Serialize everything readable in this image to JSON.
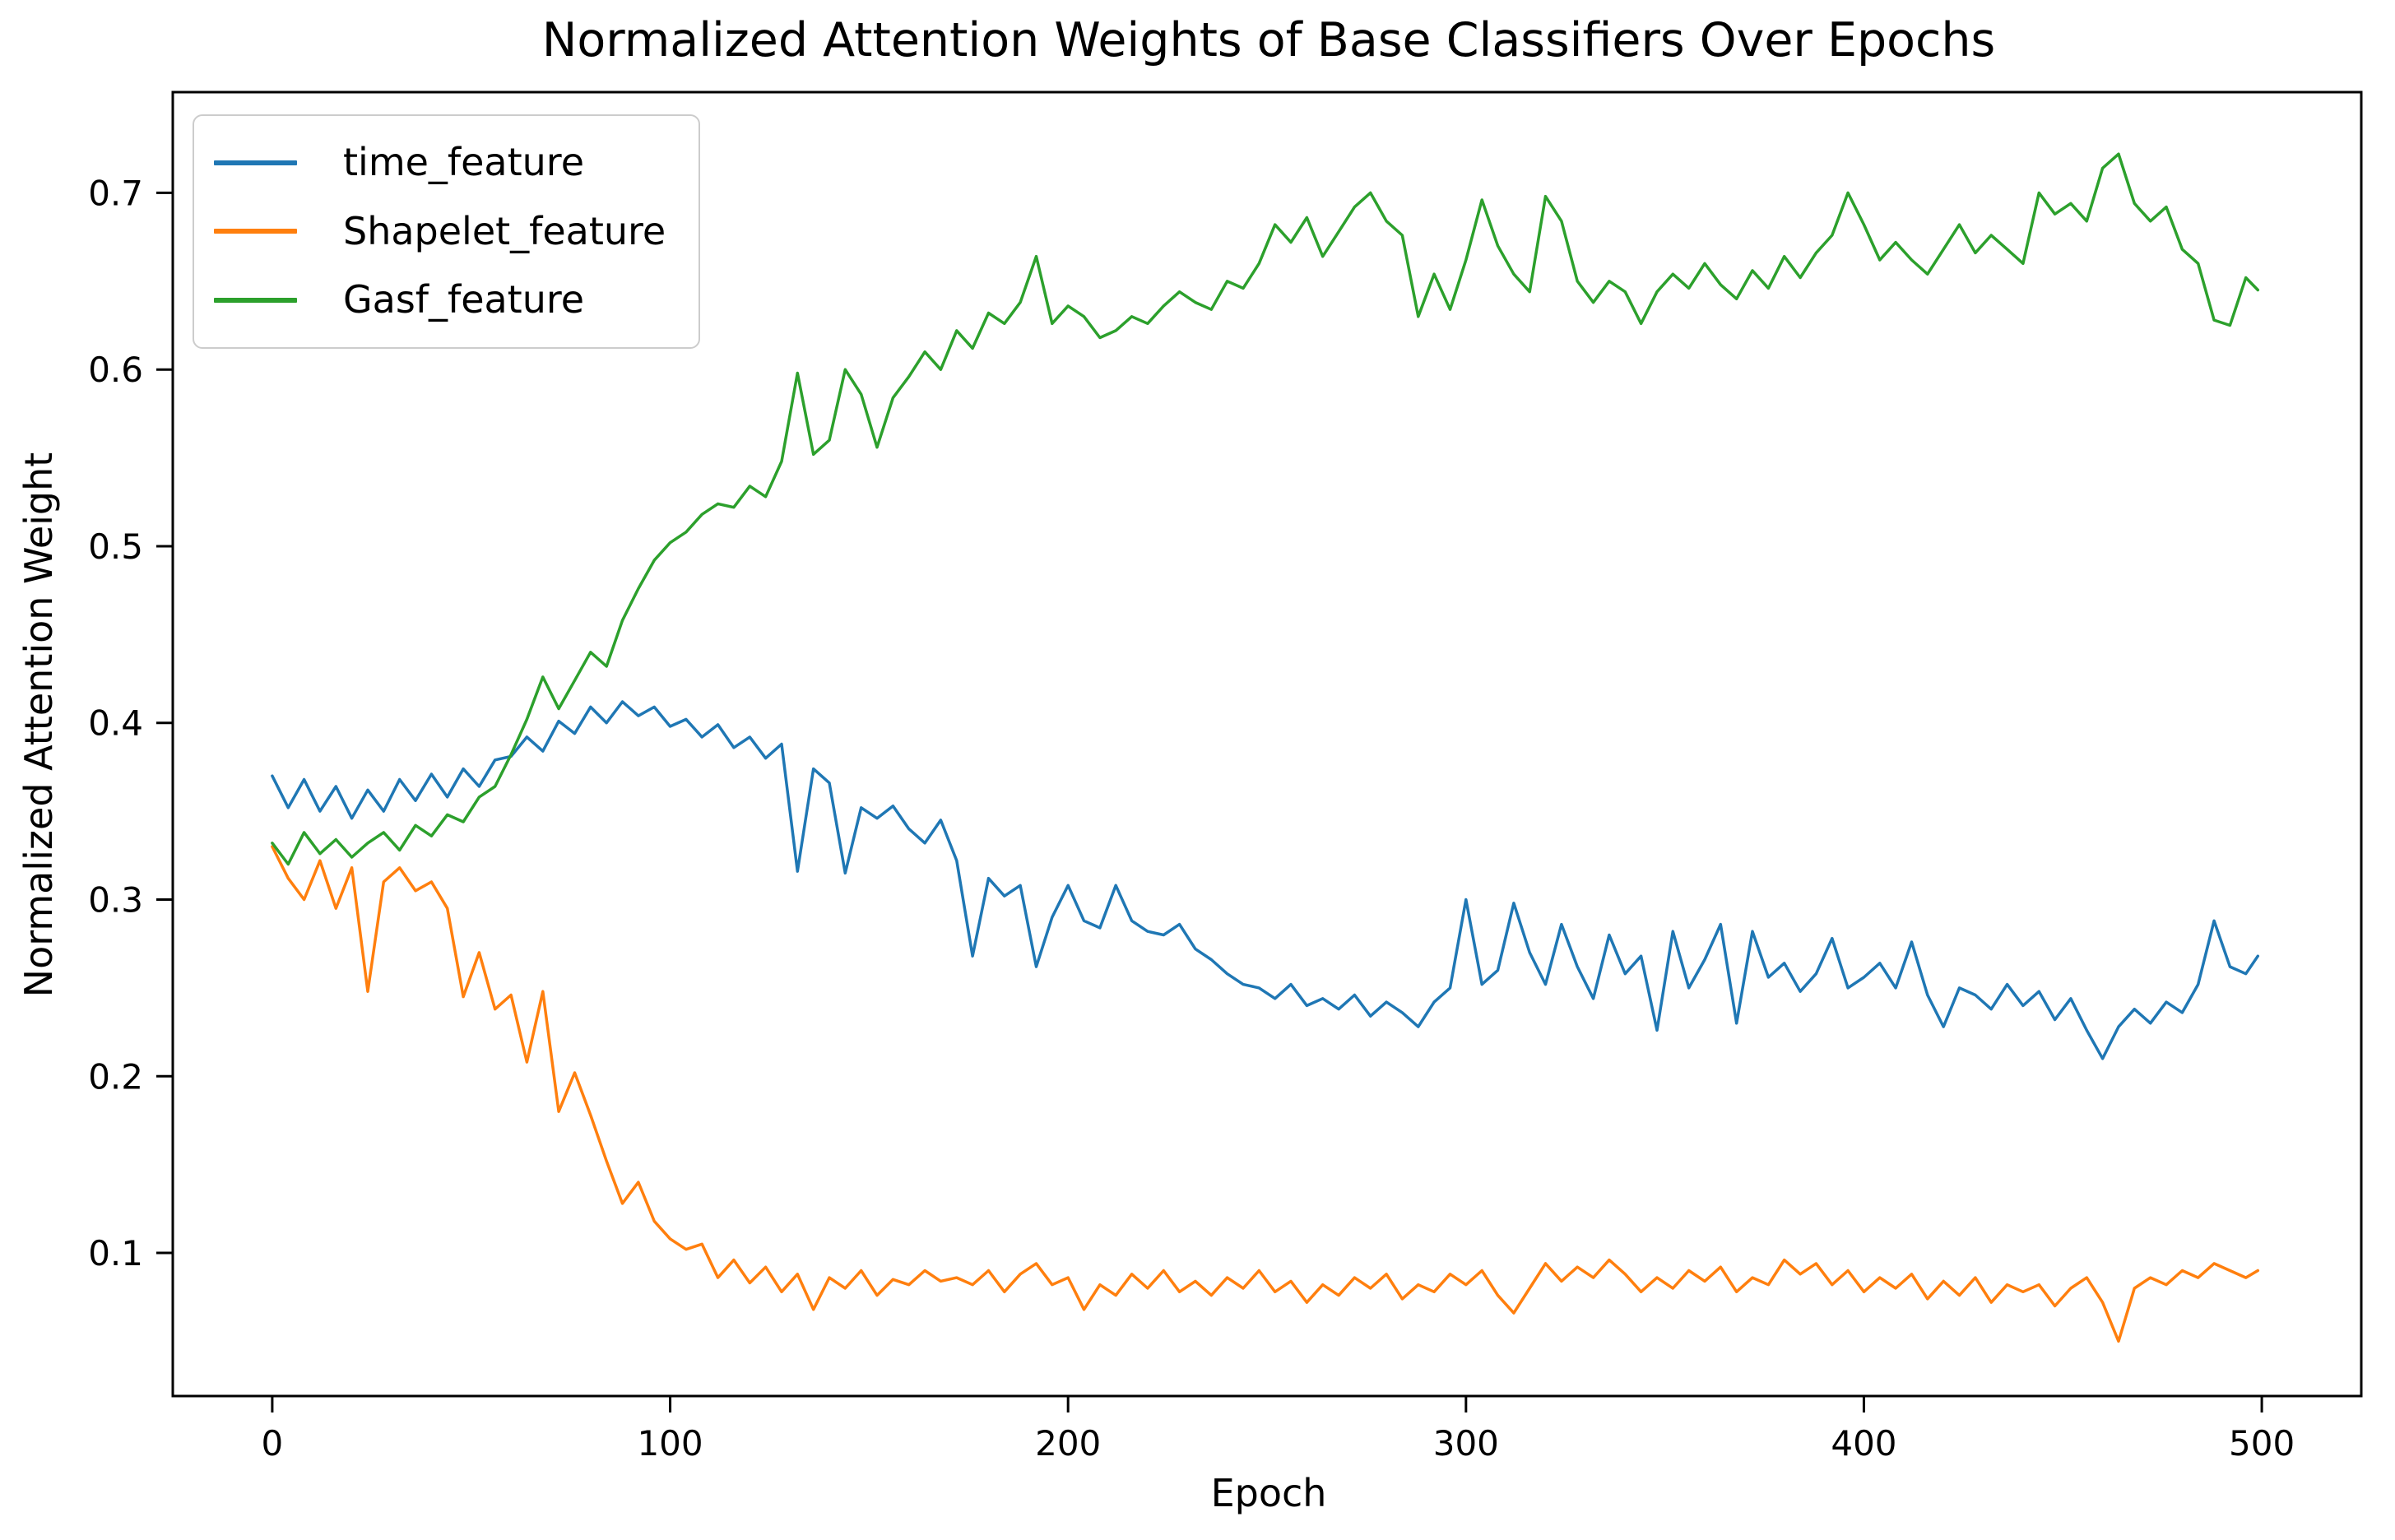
{
  "chart_data": {
    "type": "line",
    "title": "Normalized Attention Weights of Base Classifiers Over Epochs",
    "xlabel": "Epoch",
    "ylabel": "Normalized Attention Weight",
    "xlim": [
      -25,
      525
    ],
    "ylim": [
      0.019,
      0.757
    ],
    "x_ticks": [
      0,
      100,
      200,
      300,
      400,
      500
    ],
    "y_ticks": [
      0.1,
      0.2,
      0.3,
      0.4,
      0.5,
      0.6,
      0.7
    ],
    "grid": false,
    "legend_position": "upper left",
    "x": [
      0,
      4,
      8,
      12,
      16,
      20,
      24,
      28,
      32,
      36,
      40,
      44,
      48,
      52,
      56,
      60,
      64,
      68,
      72,
      76,
      80,
      84,
      88,
      92,
      96,
      100,
      104,
      108,
      112,
      116,
      120,
      124,
      128,
      132,
      136,
      140,
      144,
      148,
      152,
      156,
      160,
      164,
      168,
      172,
      176,
      180,
      184,
      188,
      192,
      196,
      200,
      204,
      208,
      212,
      216,
      220,
      224,
      228,
      232,
      236,
      240,
      244,
      248,
      252,
      256,
      260,
      264,
      268,
      272,
      276,
      280,
      284,
      288,
      292,
      296,
      300,
      304,
      308,
      312,
      316,
      320,
      324,
      328,
      332,
      336,
      340,
      344,
      348,
      352,
      356,
      360,
      364,
      368,
      372,
      376,
      380,
      384,
      388,
      392,
      396,
      400,
      404,
      408,
      412,
      416,
      420,
      424,
      428,
      432,
      436,
      440,
      444,
      448,
      452,
      456,
      460,
      464,
      468,
      472,
      476,
      480,
      484,
      488,
      492,
      496,
      499
    ],
    "series": [
      {
        "name": "time_feature",
        "color": "#1f77b4",
        "values": [
          0.37,
          0.352,
          0.368,
          0.35,
          0.364,
          0.346,
          0.362,
          0.35,
          0.368,
          0.356,
          0.371,
          0.358,
          0.374,
          0.364,
          0.379,
          0.381,
          0.392,
          0.384,
          0.401,
          0.394,
          0.409,
          0.4,
          0.412,
          0.404,
          0.409,
          0.398,
          0.402,
          0.392,
          0.399,
          0.386,
          0.392,
          0.38,
          0.388,
          0.316,
          0.374,
          0.366,
          0.315,
          0.352,
          0.346,
          0.353,
          0.34,
          0.332,
          0.345,
          0.322,
          0.268,
          0.312,
          0.302,
          0.308,
          0.262,
          0.29,
          0.308,
          0.288,
          0.284,
          0.308,
          0.288,
          0.282,
          0.28,
          0.286,
          0.272,
          0.266,
          0.258,
          0.252,
          0.25,
          0.244,
          0.252,
          0.24,
          0.244,
          0.238,
          0.246,
          0.234,
          0.242,
          0.236,
          0.228,
          0.242,
          0.25,
          0.3,
          0.252,
          0.26,
          0.298,
          0.27,
          0.252,
          0.286,
          0.262,
          0.244,
          0.28,
          0.258,
          0.268,
          0.226,
          0.282,
          0.25,
          0.266,
          0.286,
          0.23,
          0.282,
          0.256,
          0.264,
          0.248,
          0.258,
          0.278,
          0.25,
          0.256,
          0.264,
          0.25,
          0.276,
          0.246,
          0.228,
          0.25,
          0.246,
          0.238,
          0.252,
          0.24,
          0.248,
          0.232,
          0.244,
          0.226,
          0.21,
          0.228,
          0.238,
          0.23,
          0.242,
          0.236,
          0.252,
          0.288,
          0.262,
          0.258,
          0.268
        ]
      },
      {
        "name": "Shapelet_feature",
        "color": "#ff7f0e",
        "values": [
          0.33,
          0.312,
          0.3,
          0.322,
          0.295,
          0.318,
          0.248,
          0.31,
          0.318,
          0.305,
          0.31,
          0.295,
          0.245,
          0.27,
          0.238,
          0.246,
          0.208,
          0.248,
          0.18,
          0.202,
          0.178,
          0.152,
          0.128,
          0.14,
          0.118,
          0.108,
          0.102,
          0.105,
          0.086,
          0.096,
          0.083,
          0.092,
          0.078,
          0.088,
          0.068,
          0.086,
          0.08,
          0.09,
          0.076,
          0.085,
          0.082,
          0.09,
          0.084,
          0.086,
          0.082,
          0.09,
          0.078,
          0.088,
          0.094,
          0.082,
          0.086,
          0.068,
          0.082,
          0.076,
          0.088,
          0.08,
          0.09,
          0.078,
          0.084,
          0.076,
          0.086,
          0.08,
          0.09,
          0.078,
          0.084,
          0.072,
          0.082,
          0.076,
          0.086,
          0.08,
          0.088,
          0.074,
          0.082,
          0.078,
          0.088,
          0.082,
          0.09,
          0.076,
          0.066,
          0.08,
          0.094,
          0.084,
          0.092,
          0.086,
          0.096,
          0.088,
          0.078,
          0.086,
          0.08,
          0.09,
          0.084,
          0.092,
          0.078,
          0.086,
          0.082,
          0.096,
          0.088,
          0.094,
          0.082,
          0.09,
          0.078,
          0.086,
          0.08,
          0.088,
          0.074,
          0.084,
          0.076,
          0.086,
          0.072,
          0.082,
          0.078,
          0.082,
          0.07,
          0.08,
          0.086,
          0.072,
          0.05,
          0.08,
          0.086,
          0.082,
          0.09,
          0.086,
          0.094,
          0.09,
          0.086,
          0.09
        ]
      },
      {
        "name": "Gasf_feature",
        "color": "#2ca02c",
        "values": [
          0.332,
          0.32,
          0.338,
          0.326,
          0.334,
          0.324,
          0.332,
          0.338,
          0.328,
          0.342,
          0.336,
          0.348,
          0.344,
          0.358,
          0.364,
          0.382,
          0.402,
          0.426,
          0.408,
          0.424,
          0.44,
          0.432,
          0.458,
          0.476,
          0.492,
          0.502,
          0.508,
          0.518,
          0.524,
          0.522,
          0.534,
          0.528,
          0.548,
          0.598,
          0.552,
          0.56,
          0.6,
          0.586,
          0.556,
          0.584,
          0.596,
          0.61,
          0.6,
          0.622,
          0.612,
          0.632,
          0.626,
          0.638,
          0.664,
          0.626,
          0.636,
          0.63,
          0.618,
          0.622,
          0.63,
          0.626,
          0.636,
          0.644,
          0.638,
          0.634,
          0.65,
          0.646,
          0.66,
          0.682,
          0.672,
          0.686,
          0.664,
          0.678,
          0.692,
          0.7,
          0.684,
          0.676,
          0.63,
          0.654,
          0.634,
          0.662,
          0.696,
          0.67,
          0.654,
          0.644,
          0.698,
          0.684,
          0.65,
          0.638,
          0.65,
          0.644,
          0.626,
          0.644,
          0.654,
          0.646,
          0.66,
          0.648,
          0.64,
          0.656,
          0.646,
          0.664,
          0.652,
          0.666,
          0.676,
          0.7,
          0.682,
          0.662,
          0.672,
          0.662,
          0.654,
          0.668,
          0.682,
          0.666,
          0.676,
          0.668,
          0.66,
          0.7,
          0.688,
          0.694,
          0.684,
          0.714,
          0.722,
          0.694,
          0.684,
          0.692,
          0.668,
          0.66,
          0.628,
          0.625,
          0.652,
          0.645
        ]
      }
    ]
  }
}
